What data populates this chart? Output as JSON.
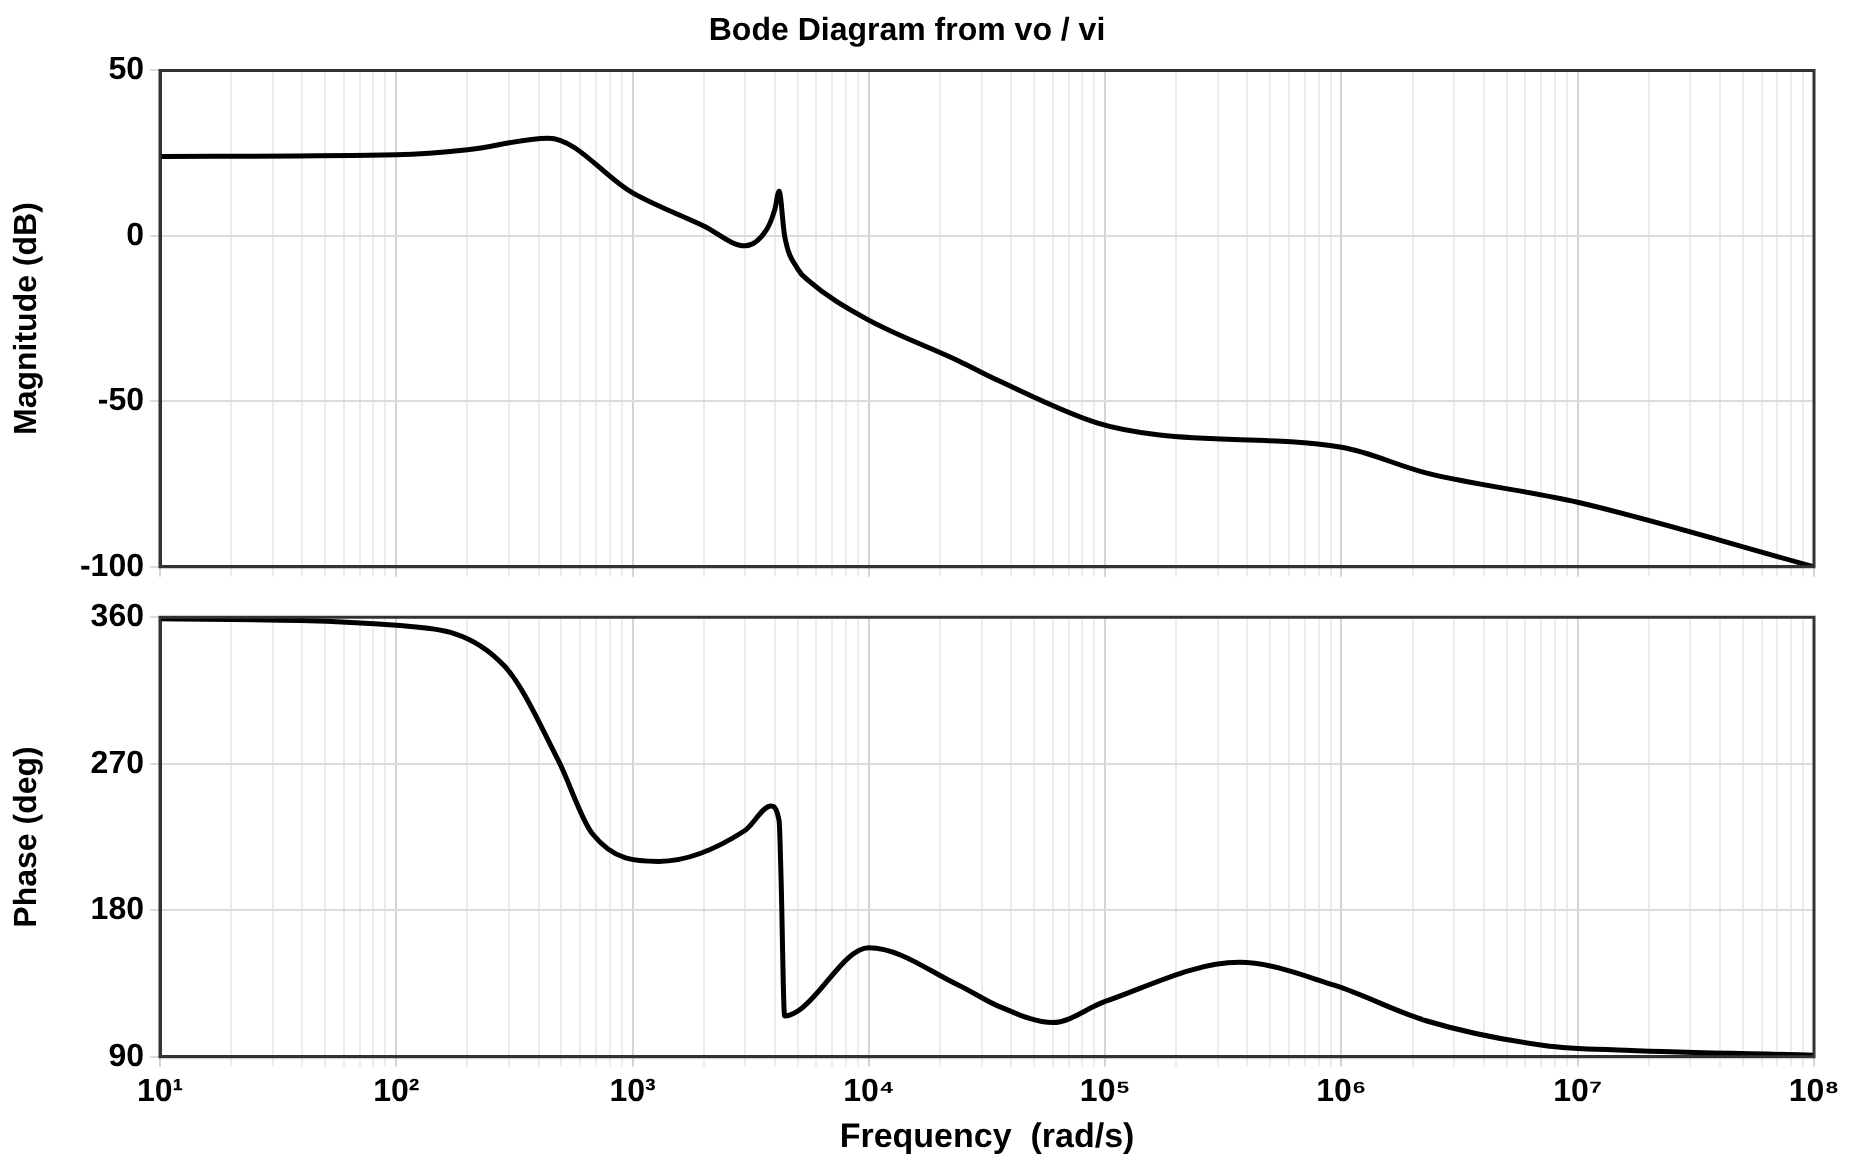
{
  "chart_data": [
    {
      "type": "line",
      "title": "Bode Diagram from vo / vi",
      "ylabel": "Magnitude (dB)",
      "log": "x",
      "grid": true,
      "legend": false,
      "marker": "none",
      "line_style": "solid",
      "tick_labels": "y",
      "xlim": [
        10,
        100000000
      ],
      "ylim": [
        -100,
        50
      ],
      "yticks": [
        -100,
        -50,
        0,
        50
      ],
      "xticks": [
        {
          "value": 10,
          "label": null
        },
        {
          "value": 20,
          "label": null
        },
        {
          "value": 30,
          "label": null
        },
        {
          "value": 40,
          "label": null
        },
        {
          "value": 50,
          "label": null
        },
        {
          "value": 60,
          "label": null
        },
        {
          "value": 70,
          "label": null
        },
        {
          "value": 80,
          "label": null
        },
        {
          "value": 90,
          "label": null
        },
        {
          "value": 100,
          "label": null
        },
        {
          "value": 200,
          "label": null
        },
        {
          "value": 300,
          "label": null
        },
        {
          "value": 400,
          "label": null
        },
        {
          "value": 500,
          "label": null
        },
        {
          "value": 600,
          "label": null
        },
        {
          "value": 700,
          "label": null
        },
        {
          "value": 800,
          "label": null
        },
        {
          "value": 900,
          "label": null
        },
        {
          "value": 1000,
          "label": null
        },
        {
          "value": 2000,
          "label": null
        },
        {
          "value": 3000,
          "label": null
        },
        {
          "value": 4000,
          "label": null
        },
        {
          "value": 5000,
          "label": null
        },
        {
          "value": 6000,
          "label": null
        },
        {
          "value": 7000,
          "label": null
        },
        {
          "value": 8000,
          "label": null
        },
        {
          "value": 9000,
          "label": null
        },
        {
          "value": 10000,
          "label": null
        },
        {
          "value": 20000,
          "label": null
        },
        {
          "value": 30000,
          "label": null
        },
        {
          "value": 40000,
          "label": null
        },
        {
          "value": 50000,
          "label": null
        },
        {
          "value": 60000,
          "label": null
        },
        {
          "value": 70000,
          "label": null
        },
        {
          "value": 80000,
          "label": null
        },
        {
          "value": 90000,
          "label": null
        },
        {
          "value": 100000,
          "label": null
        },
        {
          "value": 200000,
          "label": null
        },
        {
          "value": 300000,
          "label": null
        },
        {
          "value": 400000,
          "label": null
        },
        {
          "value": 500000,
          "label": null
        },
        {
          "value": 600000,
          "label": null
        },
        {
          "value": 700000,
          "label": null
        },
        {
          "value": 800000,
          "label": null
        },
        {
          "value": 900000,
          "label": null
        },
        {
          "value": 1000000,
          "label": null
        },
        {
          "value": 2000000,
          "label": null
        },
        {
          "value": 3000000,
          "label": null
        },
        {
          "value": 4000000,
          "label": null
        },
        {
          "value": 5000000,
          "label": null
        },
        {
          "value": 6000000,
          "label": null
        },
        {
          "value": 7000000,
          "label": null
        },
        {
          "value": 8000000,
          "label": null
        },
        {
          "value": 9000000,
          "label": null
        },
        {
          "value": 10000000,
          "label": null
        },
        {
          "value": 20000000,
          "label": null
        },
        {
          "value": 30000000,
          "label": null
        },
        {
          "value": 40000000,
          "label": null
        },
        {
          "value": 50000000,
          "label": null
        },
        {
          "value": 60000000,
          "label": null
        },
        {
          "value": 70000000,
          "label": null
        },
        {
          "value": 80000000,
          "label": null
        },
        {
          "value": 90000000,
          "label": null
        },
        {
          "value": 100000000,
          "label": null
        }
      ],
      "x": [
        10,
        100,
        200,
        440,
        1000,
        2000,
        2990,
        3700,
        4000,
        4170,
        4400,
        5000,
        5570,
        9550,
        24000,
        35500,
        93000,
        170000,
        1000000,
        2300000,
        10000000,
        100000000
      ],
      "series": [
        {
          "color": "#000000",
          "values": [
            24,
            24.5,
            26,
            29.5,
            13,
            3,
            -3,
            2,
            8,
            13.5,
            0,
            -10,
            -13.6,
            -24.7,
            -37.8,
            -43.8,
            -56.6,
            -60.2,
            -63.9,
            -71.7,
            -80.5,
            -100
          ]
        }
      ]
    },
    {
      "type": "line",
      "xlabel": "Frequency  (rad/s)",
      "ylabel": "Phase (deg)",
      "log": "x",
      "grid": true,
      "legend": false,
      "marker": "none",
      "line_style": "solid",
      "xlim": [
        10,
        100000000
      ],
      "ylim": [
        90,
        360
      ],
      "yticks": [
        90,
        180,
        270,
        360
      ],
      "xticks": [
        {
          "value": 10,
          "label": "10¹"
        },
        {
          "value": 20,
          "label": null
        },
        {
          "value": 30,
          "label": null
        },
        {
          "value": 40,
          "label": null
        },
        {
          "value": 50,
          "label": null
        },
        {
          "value": 60,
          "label": null
        },
        {
          "value": 70,
          "label": null
        },
        {
          "value": 80,
          "label": null
        },
        {
          "value": 90,
          "label": null
        },
        {
          "value": 100,
          "label": "10²"
        },
        {
          "value": 200,
          "label": null
        },
        {
          "value": 300,
          "label": null
        },
        {
          "value": 400,
          "label": null
        },
        {
          "value": 500,
          "label": null
        },
        {
          "value": 600,
          "label": null
        },
        {
          "value": 700,
          "label": null
        },
        {
          "value": 800,
          "label": null
        },
        {
          "value": 900,
          "label": null
        },
        {
          "value": 1000,
          "label": "10³"
        },
        {
          "value": 2000,
          "label": null
        },
        {
          "value": 3000,
          "label": null
        },
        {
          "value": 4000,
          "label": null
        },
        {
          "value": 5000,
          "label": null
        },
        {
          "value": 6000,
          "label": null
        },
        {
          "value": 7000,
          "label": null
        },
        {
          "value": 8000,
          "label": null
        },
        {
          "value": 9000,
          "label": null
        },
        {
          "value": 10000,
          "label": "10⁴"
        },
        {
          "value": 20000,
          "label": null
        },
        {
          "value": 30000,
          "label": null
        },
        {
          "value": 40000,
          "label": null
        },
        {
          "value": 50000,
          "label": null
        },
        {
          "value": 60000,
          "label": null
        },
        {
          "value": 70000,
          "label": null
        },
        {
          "value": 80000,
          "label": null
        },
        {
          "value": 90000,
          "label": null
        },
        {
          "value": 100000,
          "label": "10⁵"
        },
        {
          "value": 200000,
          "label": null
        },
        {
          "value": 300000,
          "label": null
        },
        {
          "value": 400000,
          "label": null
        },
        {
          "value": 500000,
          "label": null
        },
        {
          "value": 600000,
          "label": null
        },
        {
          "value": 700000,
          "label": null
        },
        {
          "value": 800000,
          "label": null
        },
        {
          "value": 900000,
          "label": null
        },
        {
          "value": 1000000,
          "label": "10⁶"
        },
        {
          "value": 2000000,
          "label": null
        },
        {
          "value": 3000000,
          "label": null
        },
        {
          "value": 4000000,
          "label": null
        },
        {
          "value": 5000000,
          "label": null
        },
        {
          "value": 6000000,
          "label": null
        },
        {
          "value": 7000000,
          "label": null
        },
        {
          "value": 8000000,
          "label": null
        },
        {
          "value": 9000000,
          "label": null
        },
        {
          "value": 10000000,
          "label": "10⁷"
        },
        {
          "value": 20000000,
          "label": null
        },
        {
          "value": 30000000,
          "label": null
        },
        {
          "value": 40000000,
          "label": null
        },
        {
          "value": 50000000,
          "label": null
        },
        {
          "value": 60000000,
          "label": null
        },
        {
          "value": 70000000,
          "label": null
        },
        {
          "value": 80000000,
          "label": null
        },
        {
          "value": 90000000,
          "label": null
        },
        {
          "value": 100000000,
          "label": "10⁸"
        }
      ],
      "x": [
        10,
        100,
        287,
        485,
        676,
        1290,
        2990,
        3850,
        4170,
        4250,
        4400,
        5000,
        10000,
        24000,
        35500,
        60000,
        100000,
        370000,
        930000,
        2300000,
        7200000,
        16000000,
        100000000
      ],
      "series": [
        {
          "color": "#000000",
          "values": [
            359,
            355,
            330,
            272,
            227,
            210,
            229,
            244,
            235,
            200,
            115,
            118,
            157,
            134,
            121,
            111,
            124,
            148,
            134,
            112,
            97,
            94,
            91
          ]
        }
      ]
    }
  ]
}
